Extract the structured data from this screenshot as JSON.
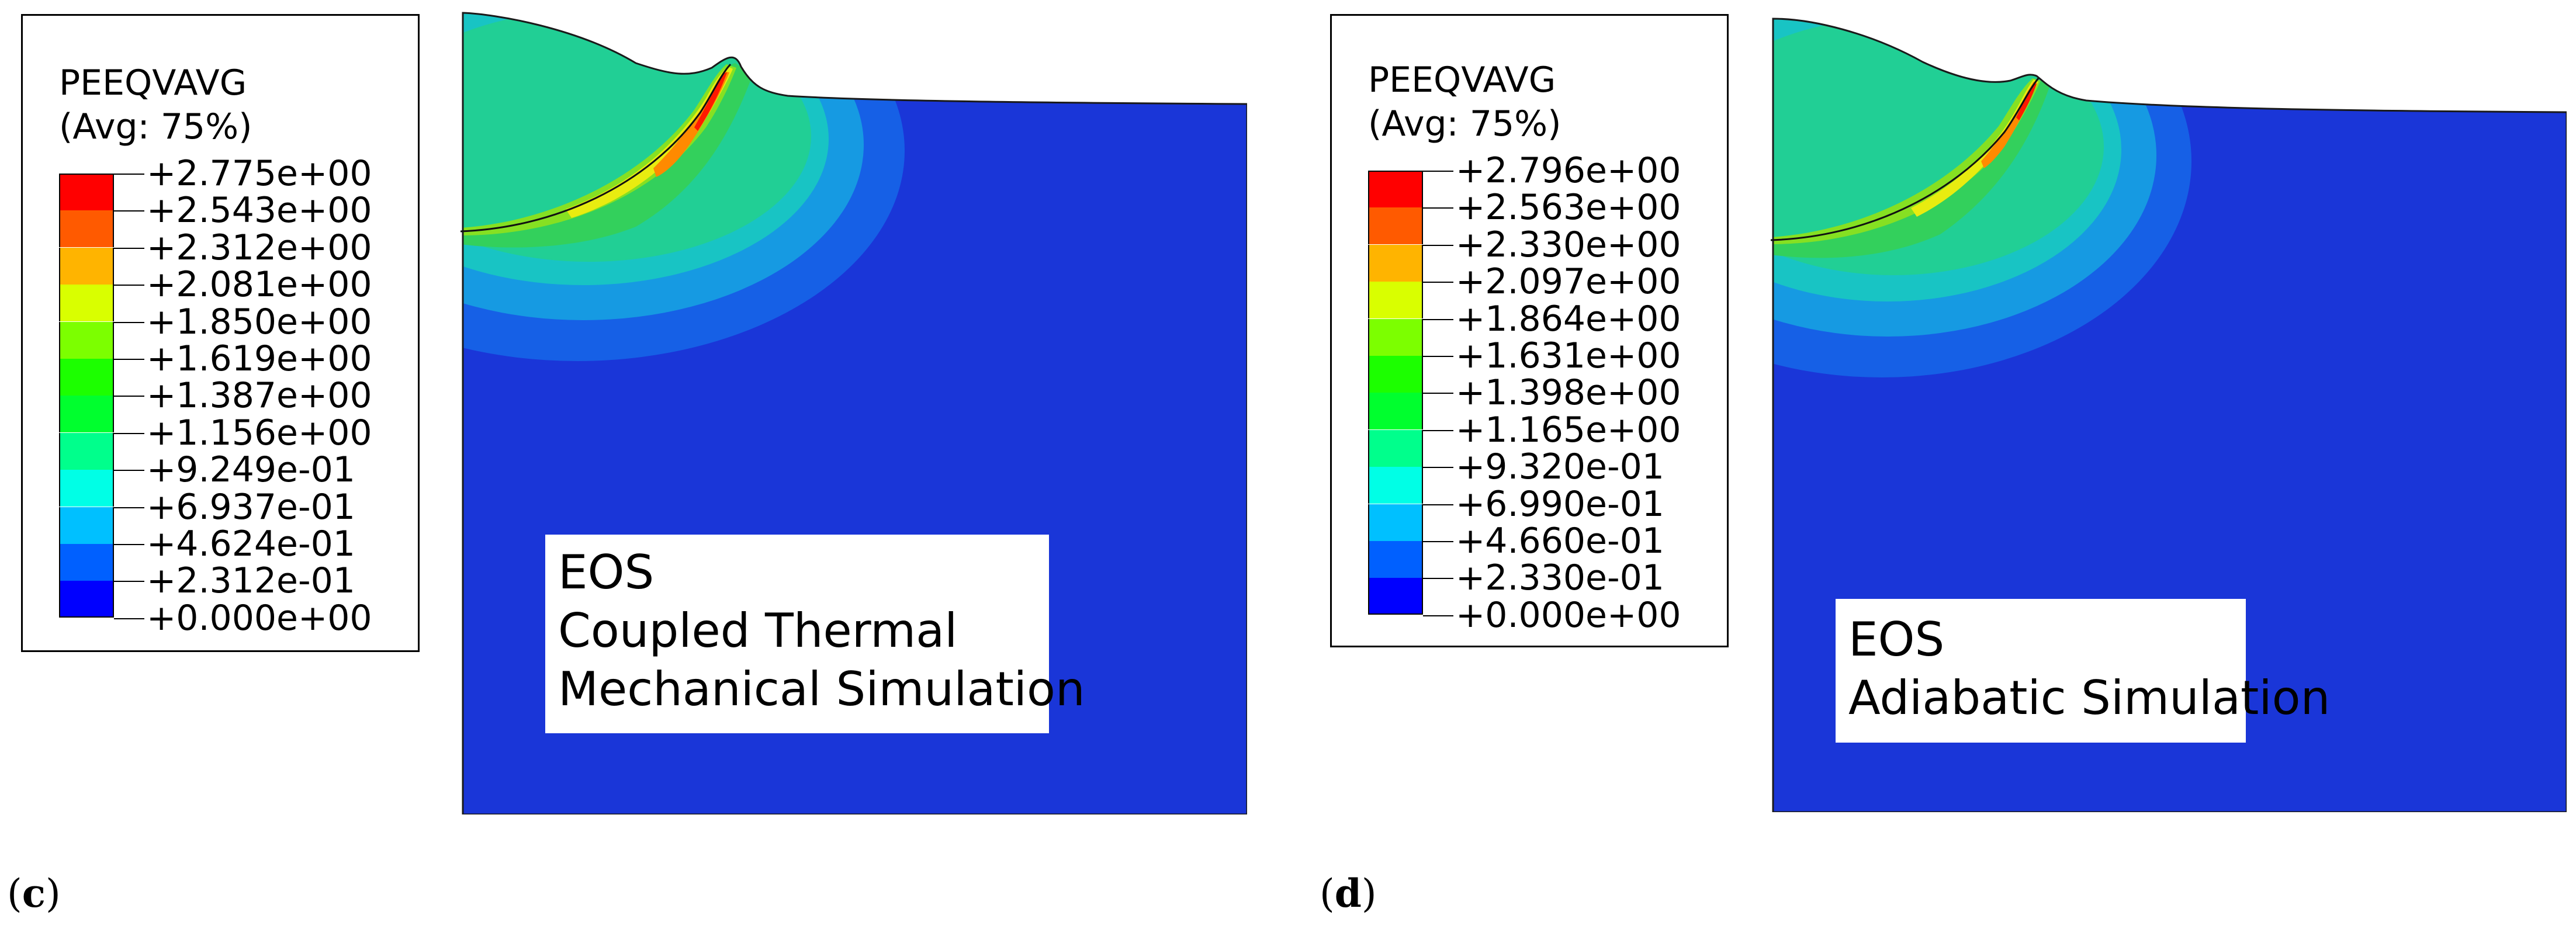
{
  "panels": [
    {
      "id": "c",
      "label_open": "(",
      "label_letter": "c",
      "label_close": ")",
      "legend": {
        "variable": "PEEQVAVG",
        "averaging": "(Avg: 75%)",
        "values": [
          "+2.775e+00",
          "+2.543e+00",
          "+2.312e+00",
          "+2.081e+00",
          "+1.850e+00",
          "+1.619e+00",
          "+1.387e+00",
          "+1.156e+00",
          "+9.249e-01",
          "+6.937e-01",
          "+4.624e-01",
          "+2.312e-01",
          "+0.000e+00"
        ]
      },
      "caption": [
        "EOS",
        "Coupled Thermal",
        "Mechanical Simulation"
      ]
    },
    {
      "id": "d",
      "label_open": "(",
      "label_letter": "d",
      "label_close": ")",
      "legend": {
        "variable": "PEEQVAVG",
        "averaging": "(Avg: 75%)",
        "values": [
          "+2.796e+00",
          "+2.563e+00",
          "+2.330e+00",
          "+2.097e+00",
          "+1.864e+00",
          "+1.631e+00",
          "+1.398e+00",
          "+1.165e+00",
          "+9.320e-01",
          "+6.990e-01",
          "+4.660e-01",
          "+2.330e-01",
          "+0.000e+00"
        ]
      },
      "caption": [
        "EOS",
        "Adiabatic Simulation"
      ]
    }
  ],
  "colormap": [
    "#ff0000",
    "#ff5a00",
    "#ffb400",
    "#d9ff00",
    "#7cff00",
    "#1cff00",
    "#00ff2e",
    "#00ff8c",
    "#00ffe6",
    "#00c0ff",
    "#0060ff",
    "#0000ff"
  ],
  "field_colors": {
    "base": "#1a36d8",
    "band1": "#1660e6",
    "band2": "#169ae2",
    "band3": "#18c4c4",
    "band4": "#21cf95",
    "band5": "#33d05c",
    "band6": "#86e022",
    "hot1": "#e8ec10",
    "hot2": "#ff8a00",
    "hot3": "#ff1a00"
  }
}
